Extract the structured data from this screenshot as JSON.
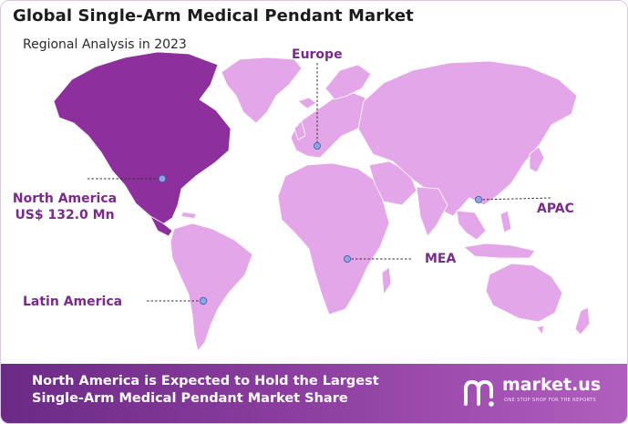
{
  "header": {
    "title": "Global Single-Arm Medical Pendant Market",
    "subtitle": "Regional Analysis in 2023"
  },
  "regions": {
    "europe": "Europe",
    "north_america": "North America",
    "north_america_value": "US$ 132.0 Mn",
    "apac": "APAC",
    "mea": "MEA",
    "latin_america": "Latin America"
  },
  "banner": {
    "line1": "North America is Expected to Hold the Largest",
    "line2": "Single-Arm Medical Pendant Market Share"
  },
  "brand": {
    "name": "market.us",
    "tagline": "ONE STOP SHOP FOR THE REPORTS"
  },
  "colors": {
    "highlight_region": "#8e2f9e",
    "other_regions": "#e3a6e8",
    "label_text": "#7a2a8c",
    "banner": "#7a3393",
    "marker": "#8aa6e8"
  }
}
